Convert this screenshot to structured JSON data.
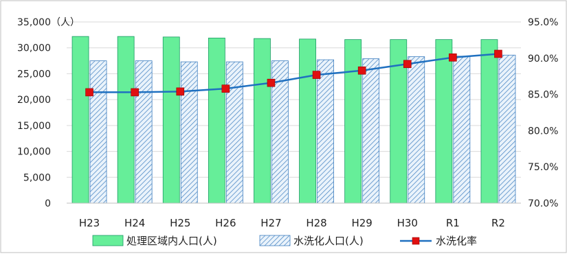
{
  "chart_data": {
    "type": "bar",
    "categories": [
      "H23",
      "H24",
      "H25",
      "H26",
      "H27",
      "H28",
      "H29",
      "H30",
      "R1",
      "R2"
    ],
    "y_unit": "（人）",
    "series": [
      {
        "name": "処理区域内人口(人)",
        "type": "bar",
        "axis": "left",
        "color": "#66ee99",
        "border": "#1a9a63",
        "values": [
          32200,
          32200,
          32100,
          31900,
          31800,
          31700,
          31600,
          31600,
          31600,
          31600
        ]
      },
      {
        "name": "水洗化人口(人)",
        "type": "bar",
        "axis": "left",
        "pattern": "diagonal-hatch",
        "color": "#3f7fc0",
        "border": "#3f7fc0",
        "values": [
          27500,
          27500,
          27300,
          27300,
          27500,
          27700,
          27900,
          28300,
          28400,
          28600
        ]
      },
      {
        "name": "水洗化率",
        "type": "line",
        "axis": "right",
        "color": "#1f70c0",
        "marker_color": "#e01010",
        "values": [
          85.3,
          85.3,
          85.4,
          85.8,
          86.6,
          87.7,
          88.3,
          89.2,
          90.1,
          90.6
        ]
      }
    ],
    "y_left": {
      "min": 0,
      "max": 35000,
      "step": 5000,
      "ticks": [
        "0",
        "5,000",
        "10,000",
        "15,000",
        "20,000",
        "25,000",
        "30,000",
        "35,000"
      ]
    },
    "y_right": {
      "min": 70,
      "max": 95,
      "step": 5,
      "ticks": [
        "70.0%",
        "75.0%",
        "80.0%",
        "85.0%",
        "90.0%",
        "95.0%"
      ]
    },
    "grid": true,
    "legend_position": "bottom"
  }
}
